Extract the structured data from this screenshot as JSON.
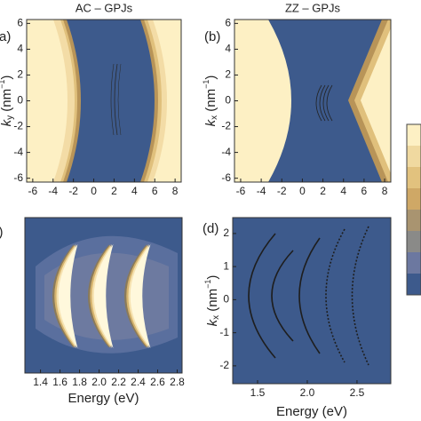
{
  "chart_data": [
    {
      "type": "contour",
      "title": "AC – GPJs",
      "panel_label": "(a)",
      "ylabel": [
        "k",
        "y",
        " (nm",
        "−1",
        ")"
      ],
      "xlim": [
        -6.6,
        8.6
      ],
      "ylim": [
        -6.3,
        6.3
      ],
      "xticks": [
        -6,
        -4,
        -2,
        0,
        2,
        4,
        6,
        8
      ],
      "yticks": [
        -6,
        -4,
        -2,
        0,
        2,
        4,
        6
      ]
    },
    {
      "type": "contour",
      "title": "ZZ – GPJs",
      "panel_label": "(b)",
      "ylabel": [
        "k",
        "x",
        " (nm",
        "−1",
        ")"
      ],
      "xlim": [
        -6.6,
        8.6
      ],
      "ylim": [
        -6.3,
        6.3
      ],
      "xticks": [
        -6,
        -4,
        -2,
        0,
        2,
        4,
        6,
        8
      ],
      "yticks": [
        -6,
        -4,
        -2,
        0,
        2,
        4,
        6
      ]
    },
    {
      "type": "contour",
      "panel_label": "(c)",
      "xlabel": "Energy (eV)",
      "xlim": [
        1.24,
        2.85
      ],
      "xticks": [
        1.4,
        1.6,
        1.8,
        {
          "value": 2,
          "label": "2.0"
        },
        2.2,
        2.4,
        2.6,
        2.8
      ]
    },
    {
      "type": "contour",
      "panel_label": "(d)",
      "xlabel": "Energy (eV)",
      "ylabel": [
        "k",
        "x",
        " (nm",
        "−1",
        ")"
      ],
      "xlim": [
        1.25,
        2.84
      ],
      "ylim": [
        -2.54,
        2.48
      ],
      "xticks": [
        1.5,
        {
          "value": 2,
          "label": "2.0"
        },
        2.5
      ],
      "yticks": [
        -2,
        -1,
        0,
        1,
        2
      ]
    }
  ]
}
